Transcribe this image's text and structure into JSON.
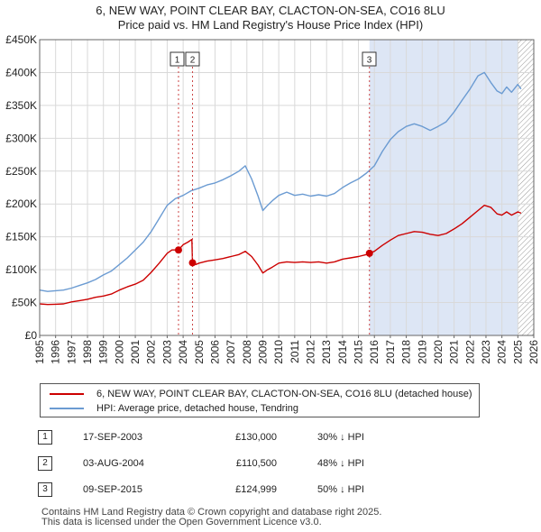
{
  "title_line1": "6, NEW WAY, POINT CLEAR BAY, CLACTON-ON-SEA, CO16 8LU",
  "title_line2": "Price paid vs. HM Land Registry's House Price Index (HPI)",
  "chart_data": {
    "type": "line",
    "title": "6, NEW WAY, POINT CLEAR BAY, CLACTON-ON-SEA, CO16 8LU — Price paid vs. HM Land Registry's House Price Index (HPI)",
    "xlim": [
      1995,
      2026
    ],
    "ylim": [
      0,
      450000
    ],
    "x_ticks": [
      1995,
      1996,
      1997,
      1998,
      1999,
      2000,
      2001,
      2002,
      2003,
      2004,
      2005,
      2006,
      2007,
      2008,
      2009,
      2010,
      2011,
      2012,
      2013,
      2014,
      2015,
      2016,
      2017,
      2018,
      2019,
      2020,
      2021,
      2022,
      2023,
      2024,
      2025,
      2026
    ],
    "y_ticks": [
      {
        "value": 0,
        "label": "£0"
      },
      {
        "value": 50000,
        "label": "£50K"
      },
      {
        "value": 100000,
        "label": "£100K"
      },
      {
        "value": 150000,
        "label": "£150K"
      },
      {
        "value": 200000,
        "label": "£200K"
      },
      {
        "value": 250000,
        "label": "£250K"
      },
      {
        "value": 300000,
        "label": "£300K"
      },
      {
        "value": 350000,
        "label": "£350K"
      },
      {
        "value": 400000,
        "label": "£400K"
      },
      {
        "value": 450000,
        "label": "£450K"
      }
    ],
    "grid": true,
    "shaded_region": {
      "from": 2015.69,
      "to": 2026,
      "color": "#dde6f5"
    },
    "hatched_region": {
      "from": 2025.0,
      "to": 2026
    },
    "series": [
      {
        "name": "6, NEW WAY, POINT CLEAR BAY, CLACTON-ON-SEA, CO16 8LU (detached house)",
        "color": "#cc0000",
        "x": [
          1995.0,
          1995.5,
          1996.0,
          1996.5,
          1997.0,
          1997.5,
          1998.0,
          1998.5,
          1999.0,
          1999.5,
          2000.0,
          2000.5,
          2001.0,
          2001.5,
          2002.0,
          2002.5,
          2003.0,
          2003.3,
          2003.71,
          2004.0,
          2004.3,
          2004.55,
          2004.59,
          2004.8,
          2005.0,
          2005.5,
          2006.0,
          2006.5,
          2007.0,
          2007.5,
          2007.9,
          2008.3,
          2008.7,
          2009.0,
          2009.3,
          2009.6,
          2010.0,
          2010.5,
          2011.0,
          2011.5,
          2012.0,
          2012.5,
          2013.0,
          2013.5,
          2014.0,
          2014.5,
          2015.0,
          2015.5,
          2015.69,
          2016.0,
          2016.5,
          2017.0,
          2017.5,
          2018.0,
          2018.5,
          2019.0,
          2019.5,
          2020.0,
          2020.5,
          2021.0,
          2021.5,
          2022.0,
          2022.5,
          2022.9,
          2023.3,
          2023.7,
          2024.0,
          2024.3,
          2024.6,
          2025.0,
          2025.2
        ],
        "values": [
          48000,
          47000,
          47500,
          48000,
          51000,
          53000,
          55000,
          58000,
          60000,
          63000,
          69000,
          74000,
          78000,
          84000,
          96000,
          110000,
          125000,
          130000,
          130000,
          138000,
          142000,
          146000,
          110500,
          108000,
          110000,
          113000,
          115000,
          117000,
          120000,
          123000,
          128000,
          120000,
          107000,
          95000,
          100000,
          104000,
          110000,
          112000,
          111000,
          112000,
          111000,
          112000,
          110000,
          112000,
          116000,
          118000,
          120000,
          123000,
          124999,
          128000,
          137000,
          145000,
          152000,
          155000,
          158000,
          157000,
          154000,
          152000,
          155000,
          162000,
          170000,
          180000,
          190000,
          198000,
          195000,
          185000,
          183000,
          188000,
          183000,
          188000,
          186000
        ]
      },
      {
        "name": "HPI: Average price, detached house, Tendring",
        "color": "#6b9bd2",
        "x": [
          1995.0,
          1995.5,
          1996.0,
          1996.5,
          1997.0,
          1997.5,
          1998.0,
          1998.5,
          1999.0,
          1999.5,
          2000.0,
          2000.5,
          2001.0,
          2001.5,
          2002.0,
          2002.5,
          2003.0,
          2003.5,
          2004.0,
          2004.5,
          2005.0,
          2005.5,
          2006.0,
          2006.5,
          2007.0,
          2007.5,
          2007.9,
          2008.3,
          2008.7,
          2009.0,
          2009.3,
          2009.6,
          2010.0,
          2010.5,
          2011.0,
          2011.5,
          2012.0,
          2012.5,
          2013.0,
          2013.5,
          2014.0,
          2014.5,
          2015.0,
          2015.5,
          2016.0,
          2016.5,
          2017.0,
          2017.5,
          2018.0,
          2018.5,
          2019.0,
          2019.5,
          2020.0,
          2020.5,
          2021.0,
          2021.5,
          2022.0,
          2022.5,
          2022.9,
          2023.3,
          2023.7,
          2024.0,
          2024.3,
          2024.6,
          2025.0,
          2025.2
        ],
        "values": [
          69000,
          67000,
          68000,
          69000,
          72000,
          76000,
          80000,
          85000,
          92000,
          98000,
          108000,
          118000,
          130000,
          142000,
          158000,
          178000,
          198000,
          208000,
          213000,
          220000,
          224000,
          229000,
          232000,
          237000,
          243000,
          250000,
          258000,
          238000,
          212000,
          190000,
          198000,
          205000,
          213000,
          218000,
          213000,
          215000,
          212000,
          214000,
          212000,
          216000,
          225000,
          232000,
          238000,
          247000,
          258000,
          280000,
          298000,
          310000,
          318000,
          322000,
          318000,
          312000,
          318000,
          325000,
          340000,
          358000,
          375000,
          395000,
          400000,
          385000,
          372000,
          368000,
          378000,
          370000,
          382000,
          375000
        ]
      }
    ],
    "markers": [
      {
        "label": "1",
        "x": 2003.71,
        "value": 130000
      },
      {
        "label": "2",
        "x": 2004.59,
        "value": 110500
      },
      {
        "label": "3",
        "x": 2015.69,
        "value": 124999
      }
    ]
  },
  "legend": {
    "items": [
      {
        "label": "6, NEW WAY, POINT CLEAR BAY, CLACTON-ON-SEA, CO16 8LU (detached house)",
        "color": "#cc0000"
      },
      {
        "label": "HPI: Average price, detached house, Tendring",
        "color": "#6b9bd2"
      }
    ]
  },
  "sales": [
    {
      "num": "1",
      "date": "17-SEP-2003",
      "price": "£130,000",
      "hpi": "30% ↓ HPI"
    },
    {
      "num": "2",
      "date": "03-AUG-2004",
      "price": "£110,500",
      "hpi": "48% ↓ HPI"
    },
    {
      "num": "3",
      "date": "09-SEP-2015",
      "price": "£124,999",
      "hpi": "50% ↓ HPI"
    }
  ],
  "footer": {
    "line1": "Contains HM Land Registry data © Crown copyright and database right 2025.",
    "line2": "This data is licensed under the Open Government Licence v3.0."
  }
}
